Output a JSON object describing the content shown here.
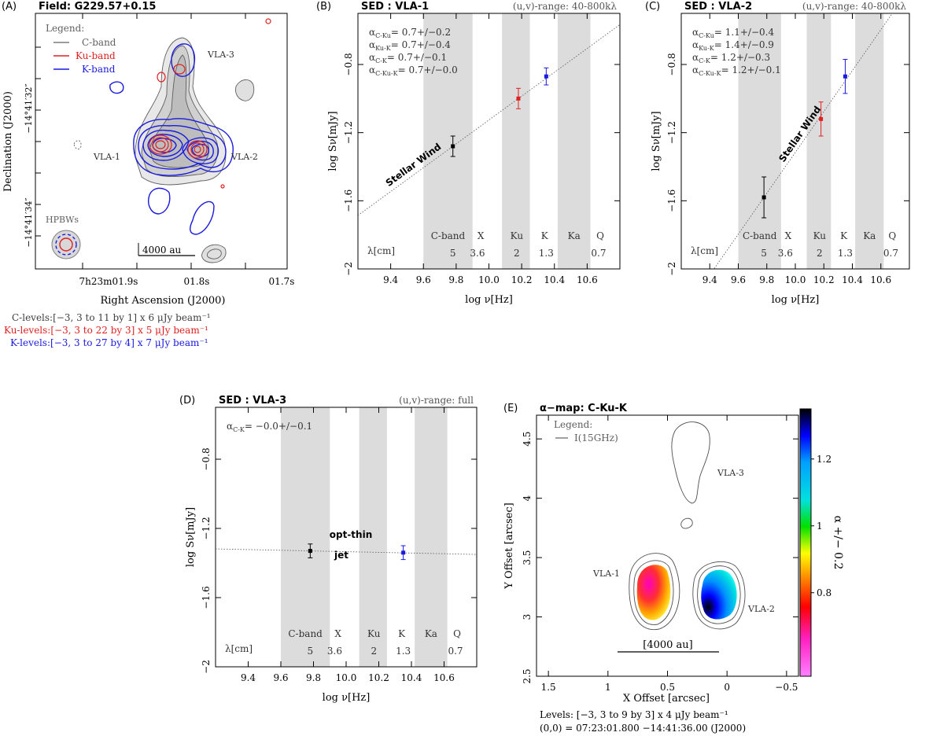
{
  "panelA": {
    "tag": "(A)",
    "title": "Field: G229.57+0.15",
    "legend": {
      "heading": "Legend:",
      "c": "C-band",
      "ku": "Ku-band",
      "k": "K-band"
    },
    "sources": {
      "vla1": "VLA-1",
      "vla2": "VLA-2",
      "vla3": "VLA-3"
    },
    "hpbw": "HPBWs",
    "scalebar": "4000 au",
    "ylabel": "Declination (J2000)",
    "xlabel": "Right Ascension (J2000)",
    "yticks": [
      "−14°41′32″",
      "−14°41′34″"
    ],
    "xticks": [
      "7h23m01.9s",
      "01.8s",
      "01.7s"
    ],
    "levels": {
      "c": "C-levels:[−3, 3 to 11 by 1] x  6 μJy beam⁻¹",
      "ku": "Ku-levels:[−3, 3 to 22 by 3] x  5 μJy beam⁻¹",
      "k": "K-levels:[−3, 3 to 27 by 4] x  7 μJy beam⁻¹"
    },
    "colors": {
      "c": "#808080",
      "ku": "#e02020",
      "k": "#1a1ae0"
    }
  },
  "panelB": {
    "tag": "(B)",
    "title": "SED : VLA-1",
    "uv": "(u,v)-range:  40-800kλ",
    "alphas": [
      "α(C-Ku) =  0.7+/−0.2",
      "α(Ku-K) =  0.7+/−0.4",
      "α(C-K) =  0.7+/−0.1",
      "α(C-Ku-K) =  0.7+/−0.0"
    ],
    "annotation": "Stellar Wind"
  },
  "panelC": {
    "tag": "(C)",
    "title": "SED : VLA-2",
    "uv": "(u,v)-range:  40-800kλ",
    "alphas": [
      "α(C-Ku) =  1.1+/−0.4",
      "α(Ku-K) =  1.4+/−0.9",
      "α(C-K) =  1.2+/−0.3",
      "α(C-Ku-K) =  1.2+/−0.1"
    ],
    "annotation": "Stellar Wind"
  },
  "panelD": {
    "tag": "(D)",
    "title": "SED : VLA-3",
    "uv": "(u,v)-range: full",
    "alphas": [
      "α(C-K) = −0.0+/−0.1"
    ],
    "annotation": [
      "opt-thin",
      "jet"
    ]
  },
  "panelE": {
    "tag": "(E)",
    "title": "α−map: C-Ku-K",
    "legend": {
      "heading": "Legend:",
      "item": "I(15GHz)"
    },
    "sources": {
      "vla1": "VLA-1",
      "vla2": "VLA-2",
      "vla3": "VLA-3"
    },
    "scalebar": "[4000 au]",
    "colorbar_label": "α +/− 0.2",
    "levels": "Levels:  [−3, 3 to 9 by 3] x   4 μJy beam⁻¹",
    "origin": "(0,0) = 07:23:01.800   −14:41:36.00   (J2000)"
  },
  "sed_common": {
    "ylabel": "log Sν[mJy]",
    "xlabel": "log ν[Hz]",
    "lambda_label": "λ[cm]",
    "bands": [
      "C-band",
      "X",
      "Ku",
      "K",
      "Ka",
      "Q"
    ],
    "wavelengths": [
      "5",
      "3.6",
      "2",
      "1.3",
      "0.7"
    ]
  },
  "chart_data": [
    {
      "type": "scatter",
      "name": "SED VLA-1",
      "xlabel": "log ν[Hz]",
      "ylabel": "log Sν[mJy]",
      "xlim": [
        9.2,
        10.8
      ],
      "ylim": [
        -2.0,
        -0.5
      ],
      "xticks": [
        9.4,
        9.6,
        9.8,
        10.0,
        10.2,
        10.4,
        10.6
      ],
      "yticks": [
        -2,
        -1.6,
        -1.2,
        -0.8
      ],
      "band_shading": [
        [
          9.6,
          9.9
        ],
        [
          10.08,
          10.25
        ],
        [
          10.42,
          10.62
        ]
      ],
      "points": [
        {
          "band": "C",
          "x": 9.78,
          "y": -1.28,
          "err": 0.06,
          "color": "#000000"
        },
        {
          "band": "Ku",
          "x": 10.18,
          "y": -1.0,
          "err": 0.06,
          "color": "#e02020"
        },
        {
          "band": "K",
          "x": 10.35,
          "y": -0.87,
          "err": 0.05,
          "color": "#1a1ae0"
        }
      ],
      "fit": {
        "slope": 0.7,
        "x0": 9.78,
        "y0": -1.28
      }
    },
    {
      "type": "scatter",
      "name": "SED VLA-2",
      "xlabel": "log ν[Hz]",
      "ylabel": "log Sν[mJy]",
      "xlim": [
        9.2,
        10.8
      ],
      "ylim": [
        -2.0,
        -0.5
      ],
      "xticks": [
        9.4,
        9.6,
        9.8,
        10.0,
        10.2,
        10.4,
        10.6
      ],
      "yticks": [
        -2,
        -1.6,
        -1.2,
        -0.8
      ],
      "band_shading": [
        [
          9.6,
          9.9
        ],
        [
          10.08,
          10.25
        ],
        [
          10.42,
          10.62
        ]
      ],
      "points": [
        {
          "band": "C",
          "x": 9.78,
          "y": -1.58,
          "err": 0.12,
          "color": "#000000"
        },
        {
          "band": "Ku",
          "x": 10.18,
          "y": -1.12,
          "err": 0.1,
          "color": "#e02020"
        },
        {
          "band": "K",
          "x": 10.35,
          "y": -0.87,
          "err": 0.1,
          "color": "#1a1ae0"
        }
      ],
      "fit": {
        "slope": 1.2,
        "x0": 9.78,
        "y0": -1.58
      }
    },
    {
      "type": "scatter",
      "name": "SED VLA-3",
      "xlabel": "log ν[Hz]",
      "ylabel": "log Sν[mJy]",
      "xlim": [
        9.2,
        10.8
      ],
      "ylim": [
        -2.0,
        -0.5
      ],
      "xticks": [
        9.4,
        9.6,
        9.8,
        10.0,
        10.2,
        10.4,
        10.6
      ],
      "yticks": [
        -2,
        -1.6,
        -1.2,
        -0.8
      ],
      "band_shading": [
        [
          9.6,
          9.9
        ],
        [
          10.08,
          10.25
        ],
        [
          10.42,
          10.62
        ]
      ],
      "points": [
        {
          "band": "C",
          "x": 9.78,
          "y": -1.33,
          "err": 0.04,
          "color": "#000000"
        },
        {
          "band": "K",
          "x": 10.35,
          "y": -1.34,
          "err": 0.04,
          "color": "#1a1ae0"
        }
      ],
      "fit": {
        "slope": -0.02,
        "x0": 9.78,
        "y0": -1.33
      }
    },
    {
      "type": "heatmap",
      "name": "alpha map",
      "xlabel": "X Offset [arcsec]",
      "ylabel": "Y Offset [arcsec]",
      "xlim": [
        1.6,
        -0.6
      ],
      "ylim": [
        2.5,
        4.7
      ],
      "xticks": [
        1.5,
        1,
        0.5,
        0,
        -0.5
      ],
      "yticks": [
        2.5,
        3,
        3.5,
        4,
        4.5
      ],
      "colorbar_range": [
        0.55,
        1.35
      ],
      "colorbar_ticks": [
        0.8,
        1,
        1.2
      ]
    }
  ]
}
